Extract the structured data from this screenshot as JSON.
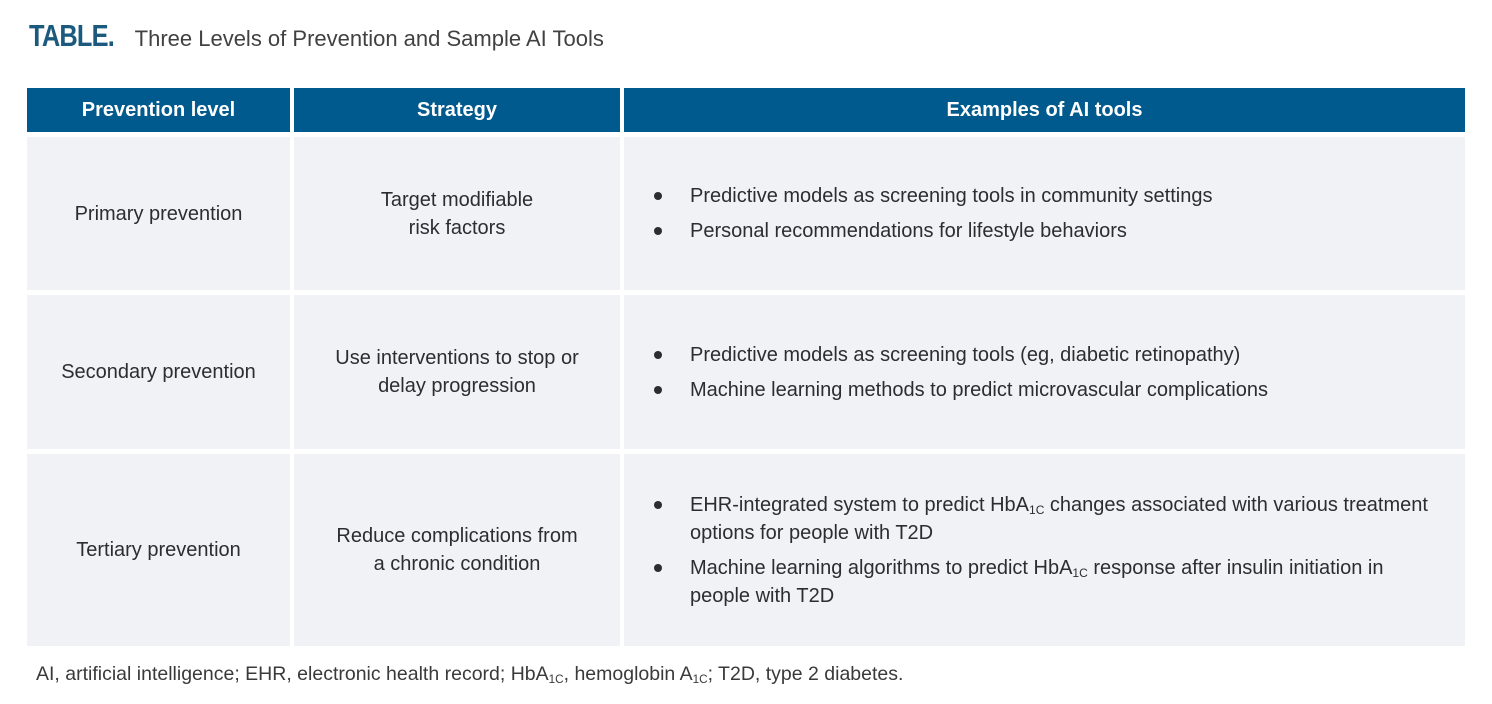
{
  "title": {
    "label": "TABLE.",
    "text": "Three Levels of Prevention and Sample AI Tools"
  },
  "table": {
    "headers": {
      "level": "Prevention level",
      "strategy": "Strategy",
      "examples": "Examples of AI tools"
    },
    "rows": [
      {
        "level": "Primary prevention",
        "strategy": "Target modifiable\nrisk factors",
        "examples": [
          "Predictive models as screening tools in community settings",
          "Personal recommendations for lifestyle behaviors"
        ]
      },
      {
        "level": "Secondary prevention",
        "strategy": "Use interventions to stop or\ndelay progression",
        "examples": [
          "Predictive models as screening tools (eg, diabetic retinopathy)",
          "Machine learning methods to predict microvascular complications"
        ]
      },
      {
        "level": "Tertiary prevention",
        "strategy": "Reduce complications from\na chronic condition",
        "examples": [
          "EHR-integrated system to predict HbA~1C~ changes associated with various treatment options for people with T2D",
          "Machine learning algorithms to predict HbA~1C~ response after insulin initiation in people with T2D"
        ]
      }
    ]
  },
  "footnote": "AI, artificial intelligence; EHR, electronic health record; HbA~1C~, hemoglobin A~1C~; T2D, type 2 diabetes.",
  "colors": {
    "header_bg": "#005a8e",
    "cell_bg": "#f0f2f5",
    "title_label": "#1b5a7e",
    "text": "#2d2d31"
  }
}
